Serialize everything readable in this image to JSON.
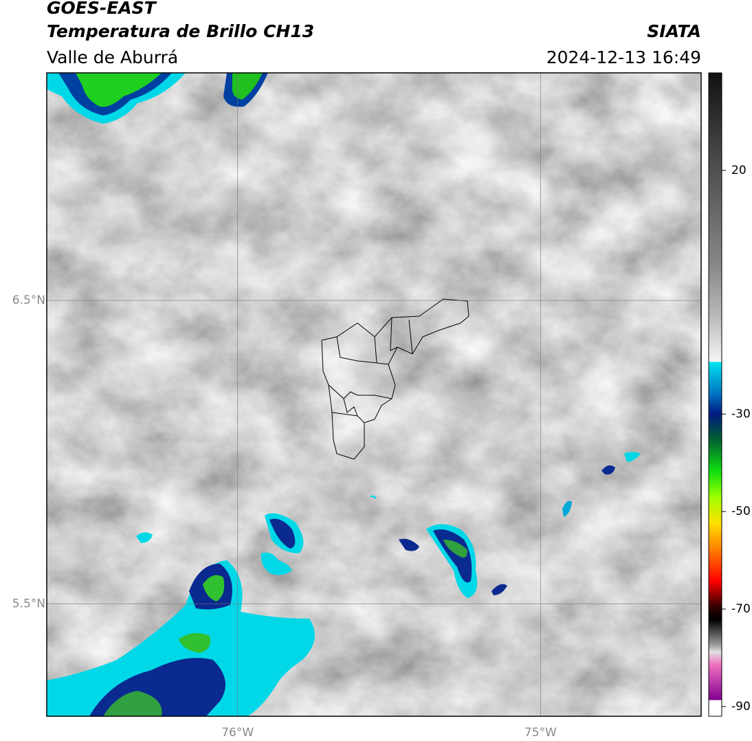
{
  "header": {
    "title": "GOES-EAST",
    "subtitle": "Temperatura de Brillo CH13",
    "region": "Valle de Aburrá",
    "source": "SIATA",
    "datetime": "2024-12-13 16:49"
  },
  "map": {
    "xlim": [
      -76.63,
      -74.47
    ],
    "ylim": [
      5.13,
      7.25
    ],
    "xticks": [
      {
        "value": -76,
        "label": "76°W"
      },
      {
        "value": -75,
        "label": "75°W"
      }
    ],
    "yticks": [
      {
        "value": 6.5,
        "label": "6.5°N"
      },
      {
        "value": 5.5,
        "label": "5.5°N"
      }
    ],
    "grid": true
  },
  "colorbar": {
    "lim": [
      -92,
      40
    ],
    "ticks": [
      20,
      -30,
      -50,
      -70,
      -90
    ]
  }
}
